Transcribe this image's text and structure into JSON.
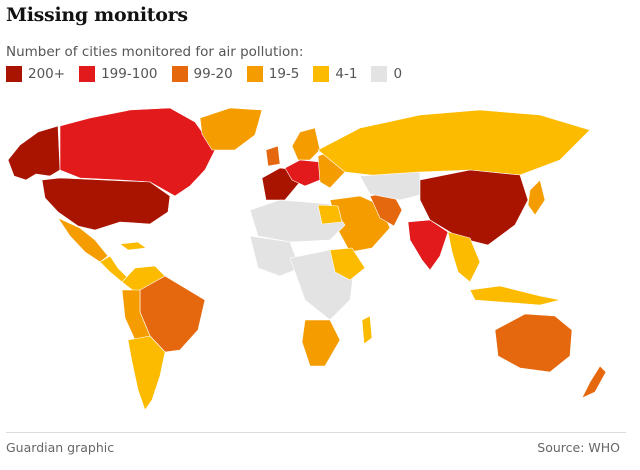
{
  "header": {
    "title": "Missing monitors",
    "subtitle": "Number of cities monitored for air pollution:"
  },
  "legend": [
    {
      "label": "200+",
      "color": "#a91400"
    },
    {
      "label": "199-100",
      "color": "#e31a1c"
    },
    {
      "label": "99-20",
      "color": "#e5680e"
    },
    {
      "label": "19-5",
      "color": "#f59d00"
    },
    {
      "label": "4-1",
      "color": "#fdbb00"
    },
    {
      "label": "0",
      "color": "#e3e3e3"
    }
  ],
  "footer": {
    "credit": "Guardian graphic",
    "source": "Source: WHO"
  }
}
